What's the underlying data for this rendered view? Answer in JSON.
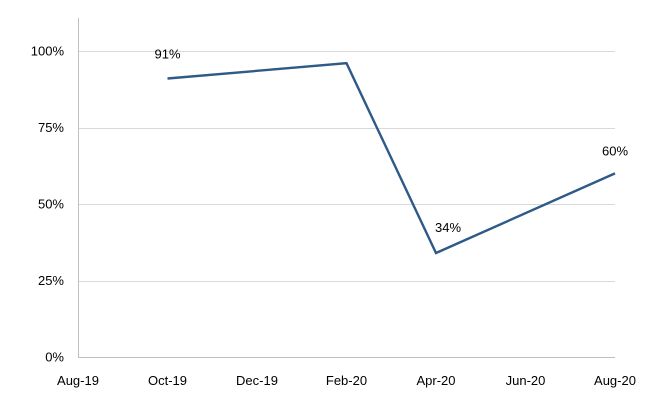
{
  "chart_data": {
    "type": "line",
    "title": "",
    "xlabel": "",
    "ylabel": "",
    "x_tick_labels": [
      "Aug-19",
      "Oct-19",
      "Dec-19",
      "Feb-20",
      "Apr-20",
      "Jun-20",
      "Aug-20"
    ],
    "y_tick_labels": [
      "0%",
      "25%",
      "50%",
      "75%",
      "100%"
    ],
    "y_ticks": [
      0,
      25,
      50,
      75,
      100
    ],
    "ylim": [
      0,
      100
    ],
    "xlim": [
      "2019-08",
      "2020-08"
    ],
    "grid": "horizontal",
    "legend": "none",
    "series": [
      {
        "color": "#2e5a87",
        "points": [
          {
            "x": "2019-10",
            "y": 91
          },
          {
            "x": "2020-02",
            "y": 96
          },
          {
            "x": "2020-04",
            "y": 34
          },
          {
            "x": "2020-08",
            "y": 60
          }
        ]
      }
    ],
    "data_labels": [
      {
        "x": "2019-10",
        "y": 91,
        "text": "91%"
      },
      {
        "x": "2020-04",
        "y": 34,
        "text": "34%"
      },
      {
        "x": "2020-08",
        "y": 60,
        "text": "60%"
      }
    ]
  }
}
